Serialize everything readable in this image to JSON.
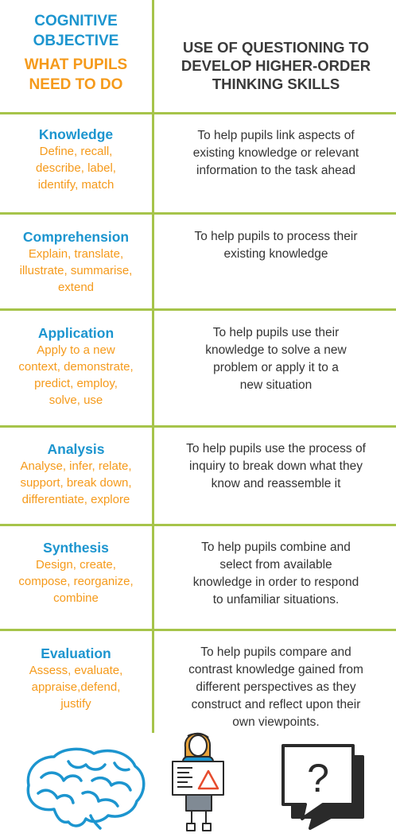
{
  "header": {
    "left_line1": "COGNITIVE",
    "left_line2": "OBJECTIVE",
    "left_line3": "WHAT PUPILS",
    "left_line4": "NEED TO DO",
    "right_line1": "USE OF QUESTIONING TO",
    "right_line2": "DEVELOP HIGHER-ORDER",
    "right_line3": "THINKING SKILLS"
  },
  "rows": [
    {
      "category": "Knowledge",
      "verbs": [
        "Define, recall,",
        "describe, label,",
        "identify, match"
      ],
      "purpose": [
        "To help pupils link aspects of",
        "existing knowledge or relevant",
        "information to the task ahead"
      ]
    },
    {
      "category": "Comprehension",
      "verbs": [
        "Explain, translate,",
        "illustrate, summarise,",
        "extend"
      ],
      "purpose": [
        "To help pupils to process their",
        "existing knowledge"
      ]
    },
    {
      "category": "Application",
      "verbs": [
        "Apply to a new",
        "context, demonstrate,",
        "predict, employ,",
        "solve, use"
      ],
      "purpose": [
        "To help pupils use their",
        "knowledge to solve a new",
        "problem or apply it to a",
        "new situation"
      ]
    },
    {
      "category": "Analysis",
      "verbs": [
        "Analyse, infer, relate,",
        "support, break down,",
        "differentiate, explore"
      ],
      "purpose": [
        "To help pupils use the process of",
        "inquiry to break down what they",
        "know and reassemble it"
      ]
    },
    {
      "category": "Synthesis",
      "verbs": [
        "Design, create,",
        "compose, reorganize,",
        "combine"
      ],
      "purpose": [
        "To help pupils combine and",
        "select from available",
        "knowledge in order to respond",
        "to unfamiliar situations."
      ]
    },
    {
      "category": "Evaluation",
      "verbs": [
        "Assess, evaluate,",
        "appraise,defend,",
        "justify"
      ],
      "purpose": [
        "To help pupils compare and",
        "contrast knowledge gained from",
        "different perspectives as they",
        "construct and reflect upon their",
        "own viewpoints."
      ]
    }
  ],
  "illustrations": {
    "question_mark": "?",
    "icons": [
      "brain-icon",
      "pupil-with-chart-icon",
      "question-speech-bubble-icon"
    ],
    "colors": {
      "brain": "#1c95cf",
      "pupil_shirt": "#1c95cf",
      "pupil_shorts": "#808a94",
      "hair": "#e8a33a",
      "outline": "#2a2a2a",
      "chart_triangle": "#e64c2e"
    }
  },
  "colors": {
    "divider": "#a6c44a",
    "category_blue": "#1c95cf",
    "verbs_orange": "#f59a1b",
    "body_text": "#333333",
    "header_text": "#3a3a3a"
  }
}
